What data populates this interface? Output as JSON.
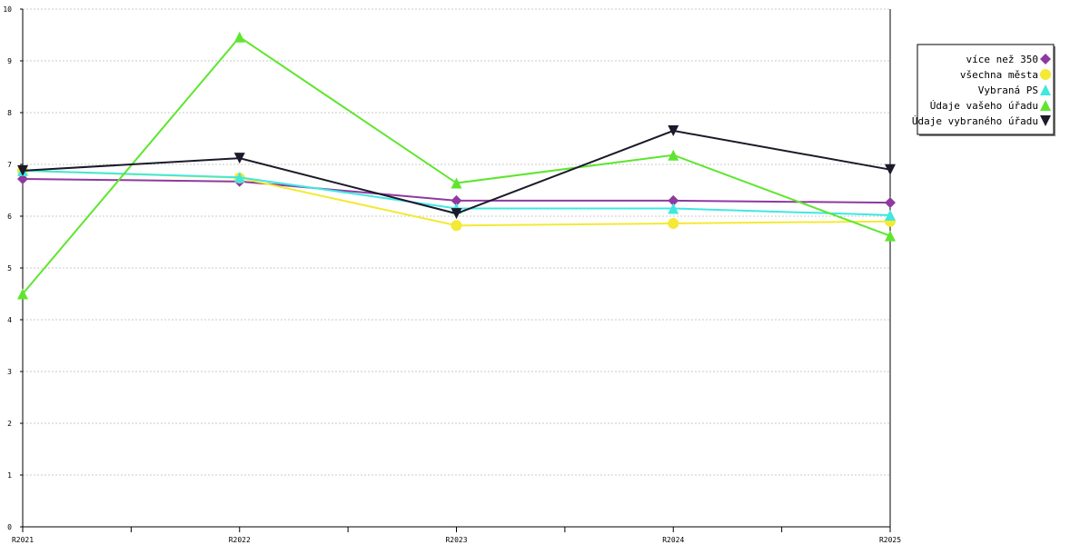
{
  "chart_data": {
    "type": "line",
    "categories": [
      "R2021",
      "R2022",
      "R2023",
      "R2024",
      "R2025"
    ],
    "ylim": [
      0,
      10
    ],
    "yticks": [
      0,
      1,
      2,
      3,
      4,
      5,
      6,
      7,
      8,
      9,
      10
    ],
    "grid": true,
    "legend_position": "top-right",
    "series": [
      {
        "name": "více než 350",
        "color": "#8e3a9f",
        "marker": "diamond",
        "values": [
          6.72,
          6.67,
          6.3,
          6.3,
          6.26
        ]
      },
      {
        "name": "všechna města",
        "color": "#f4e935",
        "marker": "circle",
        "values": [
          6.88,
          6.74,
          5.82,
          5.86,
          5.9
        ]
      },
      {
        "name": "Vybraná PS",
        "color": "#40e8e0",
        "marker": "triangle-up",
        "values": [
          6.88,
          6.75,
          6.15,
          6.15,
          6.02
        ]
      },
      {
        "name": "Údaje vašeho úřadu",
        "color": "#5ee62e",
        "marker": "triangle-up",
        "values": [
          4.5,
          9.46,
          6.64,
          7.18,
          5.62
        ]
      },
      {
        "name": "Údaje vybraného úřadu",
        "color": "#1a1a2a",
        "marker": "triangle-down",
        "values": [
          6.88,
          7.12,
          6.05,
          7.65,
          6.9
        ]
      }
    ]
  }
}
